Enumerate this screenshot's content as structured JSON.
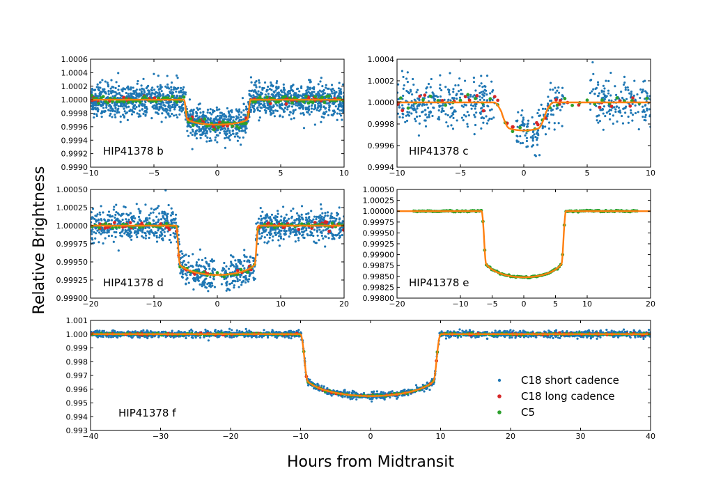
{
  "figure": {
    "ylabel": "Relative Brightness",
    "xlabel": "Hours from Midtransit",
    "legend": {
      "placement": "lower-right of panel f",
      "entries": [
        {
          "label": "C18 short cadence",
          "color": "#1f77b4"
        },
        {
          "label": "C18 long cadence",
          "color": "#d62728"
        },
        {
          "label": "C5",
          "color": "#2ca02c"
        }
      ]
    }
  },
  "colors": {
    "short_cadence": "#1f77b4",
    "long_cadence": "#d62728",
    "c5": "#2ca02c",
    "model": "#ff7f0e"
  },
  "chart_data": [
    {
      "type": "scatter",
      "planet": "HIP41378 b",
      "xlim": [
        -10,
        10
      ],
      "ylim": [
        0.999,
        1.0006
      ],
      "xticks": [
        -10,
        -5,
        0,
        5,
        10
      ],
      "xtick_labels": [
        "−10",
        "−5",
        "0",
        "5",
        "10"
      ],
      "yticks": [
        0.999,
        0.9992,
        0.9994,
        0.9996,
        0.9998,
        1.0,
        1.0002,
        1.0004,
        1.0006
      ],
      "ytick_labels": [
        "0.9990",
        "0.9992",
        "0.9994",
        "0.9996",
        "0.9998",
        "1.0000",
        "1.0002",
        "1.0004",
        "1.0006"
      ],
      "transit": {
        "half_duration_hours": 2.5,
        "ingress_hours": 0.25,
        "depth": 0.00037,
        "limb_darkening": 0.3
      },
      "series": [
        {
          "name": "C18 short cadence",
          "n_points": 1800,
          "scatter": 0.00012,
          "x_range": [
            -10,
            10
          ]
        },
        {
          "name": "C18 long cadence",
          "n_points": 60,
          "scatter": 3e-05,
          "x_range": [
            -10,
            10
          ]
        },
        {
          "name": "C5",
          "n_points": 110,
          "scatter": 3e-05,
          "x_range": [
            -10,
            10
          ]
        },
        {
          "name": "model",
          "style": "line"
        }
      ]
    },
    {
      "type": "scatter",
      "planet": "HIP41378 c",
      "xlim": [
        -10,
        10
      ],
      "ylim": [
        0.9994,
        1.0004
      ],
      "xticks": [
        -10,
        -5,
        0,
        5,
        10
      ],
      "xtick_labels": [
        "−10",
        "−5",
        "0",
        "5",
        "10"
      ],
      "yticks": [
        0.9994,
        0.9996,
        0.9998,
        1.0,
        1.0002,
        1.0004
      ],
      "ytick_labels": [
        "0.9994",
        "0.9996",
        "0.9998",
        "1.0000",
        "1.0002",
        "1.0004"
      ],
      "transit": {
        "half_duration_hours": 1.75,
        "ingress_hours": 1.2,
        "depth": 0.00026,
        "limb_darkening": 0.3
      },
      "series": [
        {
          "name": "C18 short cadence",
          "n_points": 750,
          "scatter": 0.00011,
          "x_range": [
            -10,
            10
          ],
          "gaps": [
            [
              -2.3,
              -0.6
            ],
            [
              3.2,
              5.2
            ]
          ]
        },
        {
          "name": "C18 long cadence",
          "n_points": 32,
          "scatter": 3e-05,
          "x_range": [
            -10,
            10
          ]
        },
        {
          "name": "C5",
          "n_points": 34,
          "scatter": 3e-05,
          "x_range": [
            -10,
            10
          ]
        },
        {
          "name": "model",
          "style": "line"
        }
      ]
    },
    {
      "type": "scatter",
      "planet": "HIP41378 d",
      "xlim": [
        -20,
        20
      ],
      "ylim": [
        0.999,
        1.0005
      ],
      "xticks": [
        -20,
        -10,
        0,
        10,
        20
      ],
      "xtick_labels": [
        "−20",
        "−10",
        "0",
        "10",
        "20"
      ],
      "yticks": [
        0.999,
        0.99925,
        0.9995,
        0.99975,
        1.0,
        1.00025,
        1.0005
      ],
      "ytick_labels": [
        "0.99900",
        "0.99925",
        "0.99950",
        "0.99975",
        "1.00000",
        "1.00025",
        "1.00050"
      ],
      "transit": {
        "half_duration_hours": 6.2,
        "ingress_hours": 0.6,
        "depth": 0.00068,
        "limb_darkening": 0.3
      },
      "series": [
        {
          "name": "C18 short cadence",
          "n_points": 1200,
          "scatter": 0.00011,
          "x_range": [
            -20,
            20
          ],
          "gaps": [
            [
              -0.3,
              0.7
            ]
          ]
        },
        {
          "name": "C18 long cadence",
          "n_points": 70,
          "scatter": 3e-05,
          "x_range": [
            -20,
            20
          ],
          "gaps": [
            [
              -0.3,
              0.7
            ]
          ]
        },
        {
          "name": "C5",
          "n_points": 75,
          "scatter": 2e-05,
          "x_range": [
            -20,
            20
          ]
        },
        {
          "name": "model",
          "style": "line"
        }
      ]
    },
    {
      "type": "scatter",
      "planet": "HIP41378 e",
      "xlim": [
        -20,
        20
      ],
      "ylim": [
        0.998,
        1.0005
      ],
      "xticks": [
        -20,
        -10,
        -5,
        0,
        5,
        10,
        20
      ],
      "xtick_labels": [
        "−20",
        "−10",
        "−5",
        "0",
        "5",
        "10",
        "20"
      ],
      "yticks": [
        0.998,
        0.99825,
        0.9985,
        0.99875,
        0.999,
        0.99925,
        0.9995,
        0.99975,
        1.0,
        1.00025,
        1.0005
      ],
      "ytick_labels": [
        "0.99800",
        "0.99825",
        "0.99850",
        "0.99875",
        "0.99900",
        "0.99925",
        "0.99950",
        "0.99975",
        "1.00000",
        "1.00025",
        "1.00050"
      ],
      "transit": {
        "half_duration_hours": 6.3,
        "ingress_hours": 0.7,
        "depth": 0.00152,
        "limb_darkening": 0.3
      },
      "series": [
        {
          "name": "C5",
          "n_points": 130,
          "scatter": 8e-06,
          "x_range": [
            -17.5,
            18
          ]
        },
        {
          "name": "model",
          "style": "line"
        }
      ]
    },
    {
      "type": "scatter",
      "planet": "HIP41378 f",
      "xlim": [
        -40,
        40
      ],
      "ylim": [
        0.993,
        1.001
      ],
      "xticks": [
        -40,
        -30,
        -20,
        -10,
        0,
        10,
        20,
        30,
        40
      ],
      "xtick_labels": [
        "−40",
        "−30",
        "−20",
        "−10",
        "0",
        "10",
        "20",
        "30",
        "40"
      ],
      "yticks": [
        0.993,
        0.994,
        0.995,
        0.996,
        0.997,
        0.998,
        0.999,
        1.0,
        1.001
      ],
      "ytick_labels": [
        "0.993",
        "0.994",
        "0.995",
        "0.996",
        "0.997",
        "0.998",
        "0.999",
        "1.000",
        "1.001"
      ],
      "transit": {
        "half_duration_hours": 9.5,
        "ingress_hours": 1.0,
        "depth": 0.0045,
        "limb_darkening": 0.35
      },
      "series": [
        {
          "name": "C18 short cadence",
          "n_points": 2200,
          "scatter": 0.00012,
          "x_range": [
            -40,
            40
          ]
        },
        {
          "name": "C18 long cadence",
          "n_points": 100,
          "scatter": 3e-05,
          "x_range": [
            -40,
            40
          ]
        },
        {
          "name": "C5",
          "n_points": 130,
          "scatter": 3e-05,
          "x_range": [
            -40,
            40
          ]
        },
        {
          "name": "model",
          "style": "line"
        }
      ]
    }
  ]
}
